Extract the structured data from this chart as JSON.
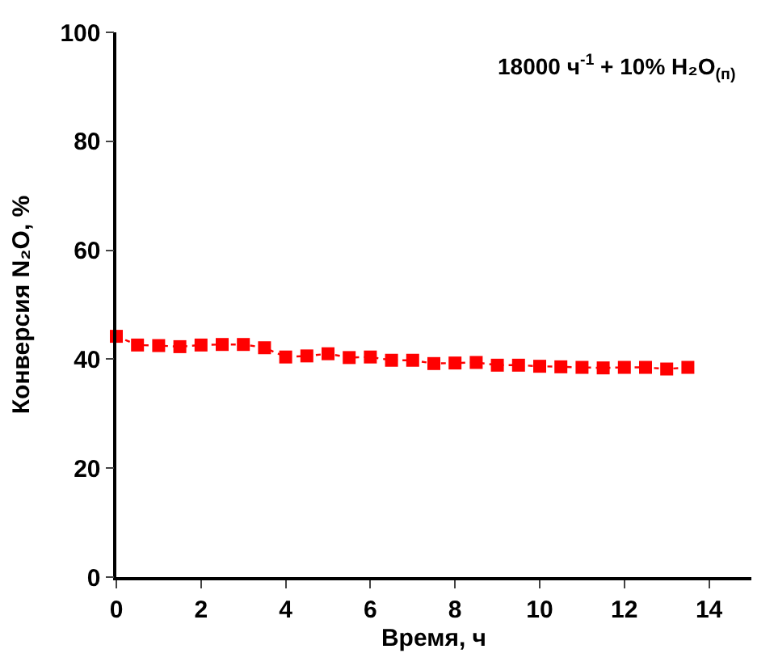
{
  "chart_data": {
    "type": "line",
    "title": "18000 ч$^{-1}$ + 10% H₂O$_{(п)}$",
    "xlabel": "Время, ч",
    "ylabel": "Конверсия N₂O, %",
    "x": [
      0,
      0.5,
      1,
      1.5,
      2,
      2.5,
      3,
      3.5,
      4,
      4.5,
      5,
      5.5,
      6,
      6.5,
      7,
      7.5,
      8,
      8.5,
      9,
      9.5,
      10,
      10.5,
      11,
      11.5,
      12,
      12.5,
      13,
      13.5
    ],
    "series": [
      {
        "color": "#ff0000",
        "values": [
          44.2,
          42.6,
          42.5,
          42.3,
          42.6,
          42.7,
          42.7,
          42.1,
          40.4,
          40.6,
          41.0,
          40.3,
          40.4,
          39.8,
          39.8,
          39.2,
          39.3,
          39.4,
          38.9,
          38.9,
          38.7,
          38.6,
          38.5,
          38.4,
          38.5,
          38.5,
          38.2,
          38.5
        ]
      }
    ],
    "xlim": [
      0,
      15
    ],
    "xticks": [
      0,
      2,
      4,
      6,
      8,
      10,
      12,
      14
    ],
    "ylim": [
      0,
      100
    ],
    "yticks": [
      0,
      20,
      40,
      60,
      80,
      100
    ],
    "legend": false,
    "marker": "square",
    "line_style": "dotted"
  }
}
